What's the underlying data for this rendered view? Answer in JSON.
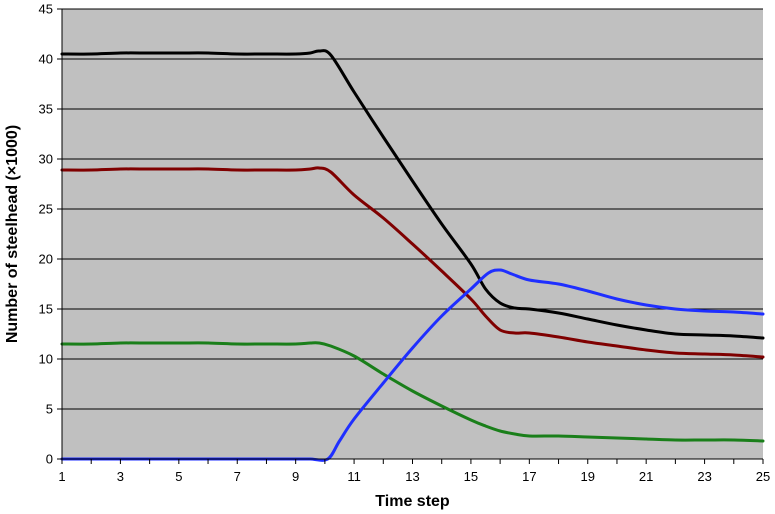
{
  "chart_data": {
    "type": "line",
    "title": "",
    "xlabel": "Time step",
    "ylabel": "Number of steelhead (×1000)",
    "xlim": [
      1,
      25
    ],
    "ylim": [
      0,
      45
    ],
    "x_ticks": [
      1,
      3,
      5,
      7,
      9,
      11,
      13,
      15,
      17,
      19,
      21,
      23,
      25
    ],
    "y_ticks": [
      0,
      5,
      10,
      15,
      20,
      25,
      30,
      35,
      40,
      45
    ],
    "grid": "horizontal",
    "legend": "none",
    "background_color": "#c0c0c0",
    "series": [
      {
        "color": "#000000",
        "points": [
          [
            1,
            40.5
          ],
          [
            2,
            40.5
          ],
          [
            3,
            40.6
          ],
          [
            4,
            40.6
          ],
          [
            5,
            40.6
          ],
          [
            6,
            40.6
          ],
          [
            7,
            40.5
          ],
          [
            8,
            40.5
          ],
          [
            9,
            40.5
          ],
          [
            9.5,
            40.6
          ],
          [
            9.8,
            40.8
          ],
          [
            10.2,
            40.4
          ],
          [
            11,
            36.7
          ],
          [
            12,
            32.2
          ],
          [
            13,
            27.8
          ],
          [
            14,
            23.5
          ],
          [
            15,
            19.5
          ],
          [
            15.5,
            17.0
          ],
          [
            16,
            15.6
          ],
          [
            16.5,
            15.1
          ],
          [
            17,
            15.0
          ],
          [
            18,
            14.6
          ],
          [
            19,
            14.0
          ],
          [
            20,
            13.4
          ],
          [
            21,
            12.9
          ],
          [
            22,
            12.5
          ],
          [
            23,
            12.4
          ],
          [
            24,
            12.3
          ],
          [
            25,
            12.1
          ]
        ]
      },
      {
        "color": "#7f0000",
        "points": [
          [
            1,
            28.9
          ],
          [
            2,
            28.9
          ],
          [
            3,
            29.0
          ],
          [
            4,
            29.0
          ],
          [
            5,
            29.0
          ],
          [
            6,
            29.0
          ],
          [
            7,
            28.9
          ],
          [
            8,
            28.9
          ],
          [
            9,
            28.9
          ],
          [
            9.5,
            29.0
          ],
          [
            9.8,
            29.1
          ],
          [
            10.2,
            28.7
          ],
          [
            11,
            26.4
          ],
          [
            12,
            24.1
          ],
          [
            13,
            21.5
          ],
          [
            14,
            18.8
          ],
          [
            15,
            16.0
          ],
          [
            15.5,
            14.3
          ],
          [
            16,
            12.9
          ],
          [
            16.5,
            12.6
          ],
          [
            17,
            12.6
          ],
          [
            18,
            12.2
          ],
          [
            19,
            11.7
          ],
          [
            20,
            11.3
          ],
          [
            21,
            10.9
          ],
          [
            22,
            10.6
          ],
          [
            23,
            10.5
          ],
          [
            24,
            10.4
          ],
          [
            25,
            10.2
          ]
        ]
      },
      {
        "color": "#1a7f1a",
        "points": [
          [
            1,
            11.5
          ],
          [
            2,
            11.5
          ],
          [
            3,
            11.6
          ],
          [
            4,
            11.6
          ],
          [
            5,
            11.6
          ],
          [
            6,
            11.6
          ],
          [
            7,
            11.5
          ],
          [
            8,
            11.5
          ],
          [
            9,
            11.5
          ],
          [
            9.5,
            11.6
          ],
          [
            9.8,
            11.6
          ],
          [
            10.2,
            11.3
          ],
          [
            11,
            10.3
          ],
          [
            12,
            8.5
          ],
          [
            13,
            6.8
          ],
          [
            14,
            5.3
          ],
          [
            15,
            3.9
          ],
          [
            15.5,
            3.3
          ],
          [
            16,
            2.8
          ],
          [
            16.5,
            2.5
          ],
          [
            17,
            2.3
          ],
          [
            18,
            2.3
          ],
          [
            19,
            2.2
          ],
          [
            20,
            2.1
          ],
          [
            21,
            2.0
          ],
          [
            22,
            1.9
          ],
          [
            23,
            1.9
          ],
          [
            24,
            1.9
          ],
          [
            25,
            1.8
          ]
        ]
      },
      {
        "color": "#1f2fff",
        "points": [
          [
            1,
            0
          ],
          [
            2,
            0
          ],
          [
            3,
            0
          ],
          [
            4,
            0
          ],
          [
            5,
            0
          ],
          [
            6,
            0
          ],
          [
            7,
            0
          ],
          [
            8,
            0
          ],
          [
            9,
            0
          ],
          [
            9.5,
            0
          ],
          [
            10.1,
            0
          ],
          [
            10.5,
            1.8
          ],
          [
            11,
            4.0
          ],
          [
            12,
            7.6
          ],
          [
            13,
            11.1
          ],
          [
            14,
            14.3
          ],
          [
            15,
            17.0
          ],
          [
            15.6,
            18.6
          ],
          [
            16,
            18.9
          ],
          [
            16.4,
            18.5
          ],
          [
            17,
            17.9
          ],
          [
            18,
            17.5
          ],
          [
            19,
            16.8
          ],
          [
            20,
            16.0
          ],
          [
            21,
            15.4
          ],
          [
            22,
            15.0
          ],
          [
            23,
            14.8
          ],
          [
            24,
            14.7
          ],
          [
            25,
            14.5
          ]
        ]
      }
    ]
  }
}
